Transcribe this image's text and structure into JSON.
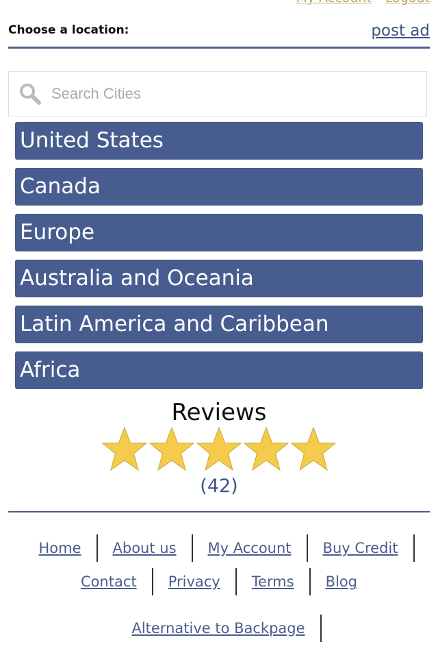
{
  "top_links": [
    "My Account",
    "Logout"
  ],
  "header": {
    "title": "Choose a location:",
    "post_ad": "post ad"
  },
  "search": {
    "placeholder": "Search Cities",
    "icon": "search-icon"
  },
  "regions": [
    "United States",
    "Canada",
    "Europe",
    "Australia and Oceania",
    "Latin America and Caribbean",
    "Africa"
  ],
  "reviews": {
    "title": "Reviews",
    "rating": 5,
    "max": 5,
    "count": "(42)"
  },
  "footer": {
    "row1": [
      "Home",
      "About us",
      "My Account",
      "Buy Credit"
    ],
    "row2": [
      "Contact",
      "Privacy",
      "Terms",
      "Blog"
    ],
    "row3": [
      "Alternative to Backpage"
    ]
  },
  "colors": {
    "accent": "#475d8f",
    "star": "#f5cb4c"
  }
}
